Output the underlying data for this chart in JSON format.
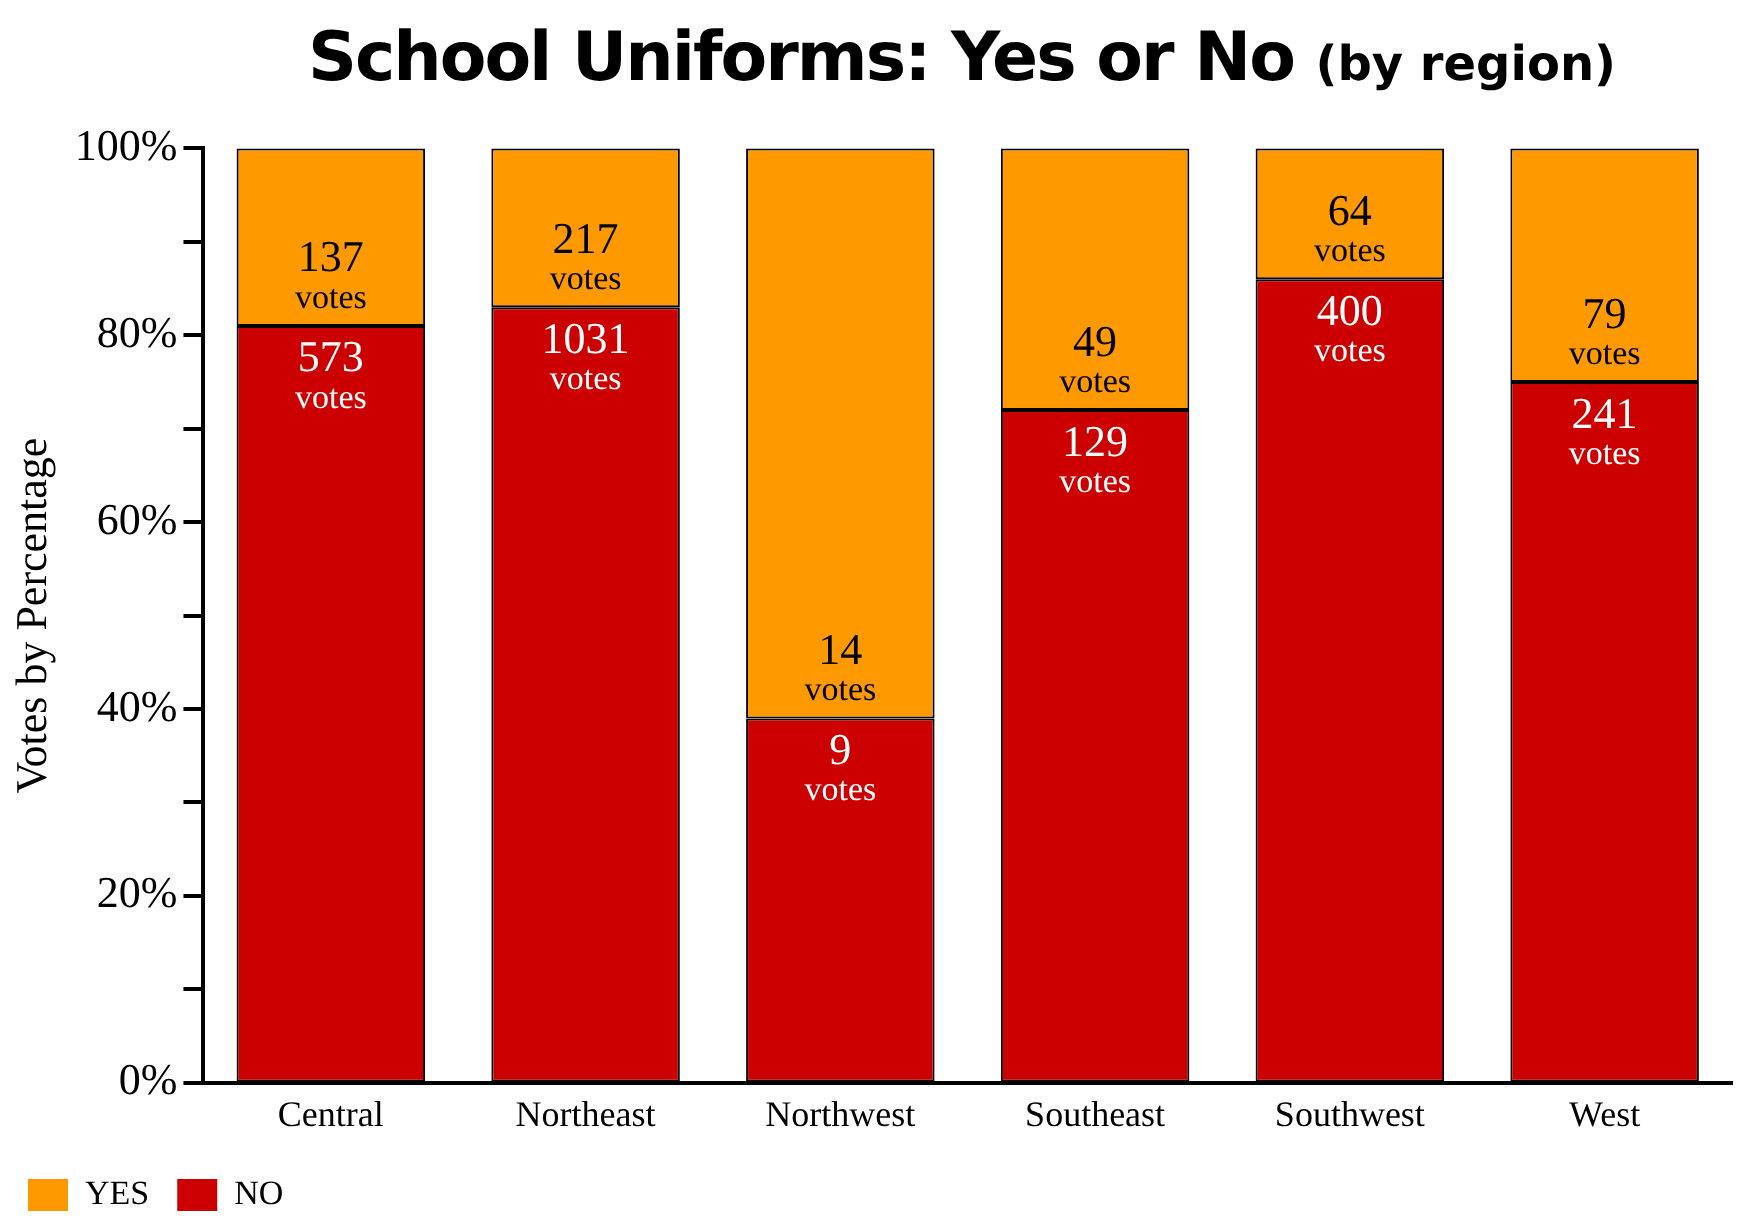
{
  "chart_data": {
    "type": "bar",
    "title": "School Uniforms: Yes or No",
    "subtitle": "(by region)",
    "ylabel": "Votes by Percentage",
    "categories": [
      "Central",
      "Northeast",
      "Northwest",
      "Southeast",
      "Southwest",
      "West"
    ],
    "stacked": true,
    "series": [
      {
        "name": "NO",
        "color": "#cc0000",
        "values": [
          81,
          83,
          39,
          72,
          86,
          75
        ]
      },
      {
        "name": "YES",
        "color": "#ff9900",
        "values": [
          19,
          17,
          61,
          28,
          14,
          25
        ]
      }
    ],
    "annotations": [
      "573 votes",
      "137 votes",
      "1031 votes",
      "217 votes",
      "9 votes",
      "14 votes",
      "129 votes",
      "49 votes",
      "400 votes",
      "64 votes",
      "241 votes",
      "79 votes"
    ],
    "ylim": [
      0,
      100
    ],
    "yticks": [
      {
        "value": 0,
        "label": "0%"
      },
      {
        "value": 10,
        "label": null
      },
      {
        "value": 20,
        "label": "20%"
      },
      {
        "value": 30,
        "label": null
      },
      {
        "value": 40,
        "label": "40%"
      },
      {
        "value": 50,
        "label": null
      },
      {
        "value": 60,
        "label": "60%"
      },
      {
        "value": 70,
        "label": null
      },
      {
        "value": 80,
        "label": "80%"
      },
      {
        "value": 90,
        "label": null
      },
      {
        "value": 100,
        "label": "100%"
      }
    ],
    "grid": false,
    "legend": "bottom left"
  }
}
